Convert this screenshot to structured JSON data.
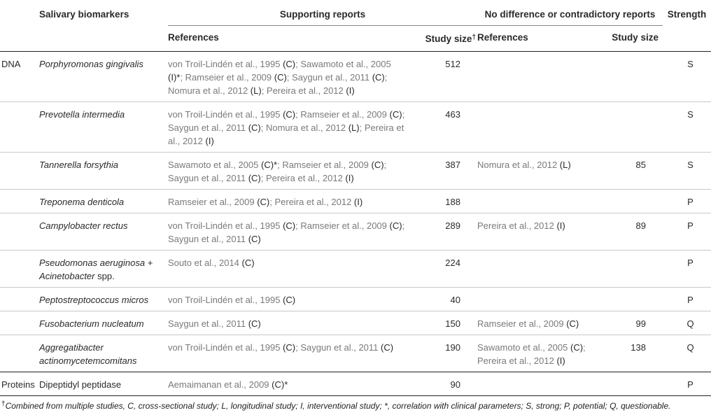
{
  "headers": {
    "biomarkers": "Salivary biomarkers",
    "supporting": "Supporting reports",
    "contradictory": "No difference or contradictory reports",
    "strength": "Strength",
    "references": "References",
    "study_size_dagger": "Study size",
    "dagger": "†",
    "references2": "References",
    "study_size": "Study size"
  },
  "rows": [
    {
      "category": "DNA",
      "biomarker": "Porphyromonas gingivalis",
      "support_refs": [
        {
          "t": "von Troil-Lindén et al., 1995 ",
          "c": "(C)"
        },
        {
          "t": "; Sawamoto et al., 2005 ",
          "c": "(I)*"
        },
        {
          "t": "; Ramseier et al., 2009 ",
          "c": "(C)"
        },
        {
          "t": "; Saygun et al., 2011 ",
          "c": "(C)"
        },
        {
          "t": "; Nomura et al., 2012 ",
          "c": "(L)"
        },
        {
          "t": "; Pereira et al., 2012 ",
          "c": "(I)"
        }
      ],
      "support_size": "512",
      "contra_refs": [],
      "contra_size": "",
      "strength": "S"
    },
    {
      "category": "",
      "biomarker": "Prevotella intermedia",
      "support_refs": [
        {
          "t": "von Troil-Lindén et al., 1995 ",
          "c": "(C)"
        },
        {
          "t": "; Ramseier et al., 2009 ",
          "c": "(C)"
        },
        {
          "t": "; Saygun et al., 2011 ",
          "c": "(C)"
        },
        {
          "t": "; Nomura et al., 2012 ",
          "c": "(L)"
        },
        {
          "t": "; Pereira et al., 2012 ",
          "c": "(I)"
        }
      ],
      "support_size": "463",
      "contra_refs": [],
      "contra_size": "",
      "strength": "S"
    },
    {
      "category": "",
      "biomarker": "Tannerella forsythia",
      "support_refs": [
        {
          "t": "Sawamoto et al., 2005 ",
          "c": "(C)*"
        },
        {
          "t": "; Ramseier et al., 2009 ",
          "c": "(C)"
        },
        {
          "t": "; Saygun et al., 2011 ",
          "c": "(C)"
        },
        {
          "t": "; Pereira et al., 2012 ",
          "c": "(I)"
        }
      ],
      "support_size": "387",
      "contra_refs": [
        {
          "t": "Nomura et al., 2012 ",
          "c": "(L)"
        }
      ],
      "contra_size": "85",
      "strength": "S"
    },
    {
      "category": "",
      "biomarker": "Treponema denticola",
      "support_refs": [
        {
          "t": "Ramseier et al., 2009 ",
          "c": "(C)"
        },
        {
          "t": "; Pereira et al., 2012 ",
          "c": "(I)"
        }
      ],
      "support_size": "188",
      "contra_refs": [],
      "contra_size": "",
      "strength": "P"
    },
    {
      "category": "",
      "biomarker": "Campylobacter rectus",
      "support_refs": [
        {
          "t": "von Troil-Lindén et al., 1995 ",
          "c": "(C)"
        },
        {
          "t": "; Ramseier et al., 2009 ",
          "c": "(C)"
        },
        {
          "t": "; Saygun et al., 2011 ",
          "c": "(C)"
        }
      ],
      "support_size": "289",
      "contra_refs": [
        {
          "t": "Pereira et al., 2012 ",
          "c": "(I)"
        }
      ],
      "contra_size": "89",
      "strength": "P"
    },
    {
      "category": "",
      "biomarker": "Pseudomonas aeruginosa + Acinetobacter spp.",
      "biomarker_lines": [
        "Pseudomonas aeruginosa +",
        "Acinetobacter",
        " spp."
      ],
      "support_refs": [
        {
          "t": "Souto et al., 2014 ",
          "c": "(C)"
        }
      ],
      "support_size": "224",
      "contra_refs": [],
      "contra_size": "",
      "strength": "P"
    },
    {
      "category": "",
      "biomarker": "Peptostreptococcus micros",
      "support_refs": [
        {
          "t": "von Troil-Lindén et al., 1995 ",
          "c": "(C)"
        }
      ],
      "support_size": "40",
      "contra_refs": [],
      "contra_size": "",
      "strength": "P"
    },
    {
      "category": "",
      "biomarker": "Fusobacterium nucleatum",
      "support_refs": [
        {
          "t": "Saygun et al., 2011 ",
          "c": "(C)"
        }
      ],
      "support_size": "150",
      "contra_refs": [
        {
          "t": "Ramseier et al., 2009 ",
          "c": "(C)"
        }
      ],
      "contra_size": "99",
      "strength": "Q"
    },
    {
      "category": "",
      "biomarker": "Aggregatibacter actinomycetemcomitans",
      "support_refs": [
        {
          "t": "von Troil-Lindén et al., 1995 ",
          "c": "(C)"
        },
        {
          "t": "; Saygun et al., 2011 ",
          "c": "(C)"
        }
      ],
      "support_size": "190",
      "contra_refs": [
        {
          "t": "Sawamoto et al., 2005 ",
          "c": "(C)"
        },
        {
          "t": "; Pereira et al., 2012 ",
          "c": "(I)"
        }
      ],
      "contra_size": "138",
      "strength": "Q"
    },
    {
      "category": "Proteins",
      "biomarker": "Dipeptidyl peptidase",
      "italic": false,
      "support_refs": [
        {
          "t": "Aemaimanan et al., 2009 ",
          "c": "(C)*"
        }
      ],
      "support_size": "90",
      "contra_refs": [],
      "contra_size": "",
      "strength": "P"
    }
  ],
  "footnote": {
    "dagger": "†",
    "text": "Combined from multiple studies, C, cross-sectional study; L, longitudinal study; I, interventional study; *, correlation with clinical parameters; S, strong; P, potential; Q, questionable."
  }
}
